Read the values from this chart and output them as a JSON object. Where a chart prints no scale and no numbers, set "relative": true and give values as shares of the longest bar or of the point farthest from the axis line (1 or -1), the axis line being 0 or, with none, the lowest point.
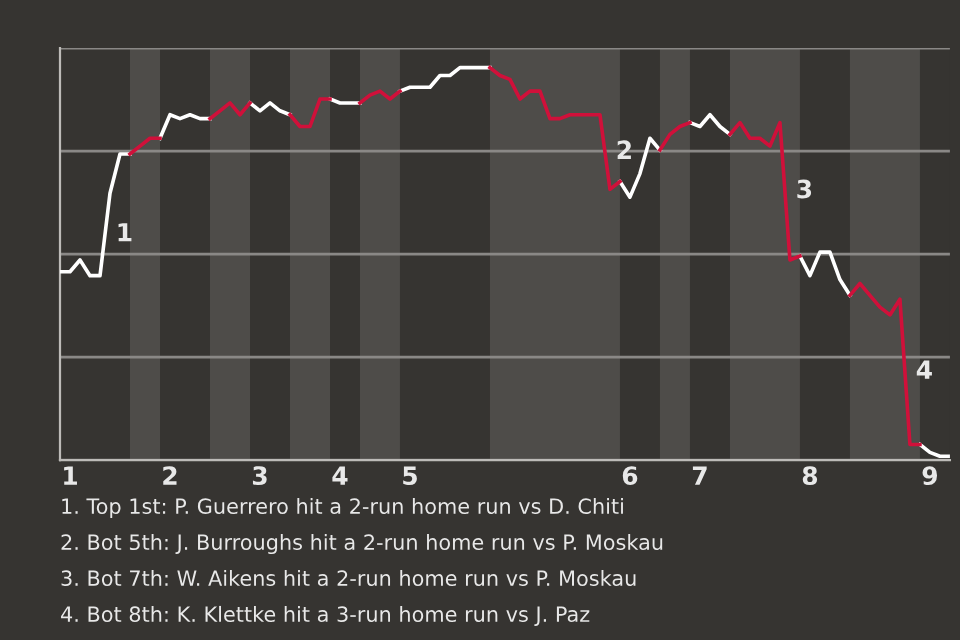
{
  "chart_data": {
    "type": "line",
    "relative": true,
    "tick_labels": "x",
    "grid": "y",
    "legend": false,
    "marker": "none",
    "line_style": "solid",
    "categories": [
      null,
      "1",
      null,
      null,
      null,
      null,
      null,
      null,
      null,
      null,
      null,
      "2",
      null,
      null,
      null,
      null,
      null,
      null,
      null,
      null,
      "3",
      null,
      null,
      null,
      null,
      null,
      null,
      null,
      "4",
      null,
      null,
      null,
      null,
      null,
      null,
      "5",
      null,
      null,
      null,
      null,
      null,
      null,
      null,
      null,
      null,
      null,
      null,
      null,
      null,
      null,
      null,
      null,
      null,
      null,
      null,
      null,
      null,
      "6",
      null,
      null,
      null,
      null,
      null,
      null,
      "7",
      null,
      null,
      null,
      null,
      null,
      null,
      null,
      null,
      null,
      null,
      "8",
      null,
      null,
      null,
      null,
      null,
      null,
      null,
      null,
      null,
      null,
      null,
      "9",
      null,
      null
    ],
    "series": [
      {
        "color": "#ffffff",
        "values": [
          0.48,
          0.48,
          0.51,
          0.47,
          0.47,
          0.68,
          0.78,
          0.78,
          null,
          null,
          0.82,
          0.88,
          0.87,
          0.88,
          0.87,
          0.87,
          null,
          null,
          null,
          0.91,
          0.89,
          0.91,
          0.89,
          0.88,
          null,
          null,
          null,
          0.92,
          0.91,
          0.91,
          0.91,
          null,
          null,
          null,
          0.94,
          0.95,
          0.95,
          0.95,
          0.98,
          0.98,
          1,
          1,
          1,
          1,
          null,
          null,
          null,
          null,
          null,
          null,
          null,
          null,
          null,
          null,
          null,
          null,
          0.71,
          0.67,
          0.73,
          0.82,
          0.79,
          null,
          null,
          0.86,
          0.85,
          0.88,
          0.85,
          0.83,
          null,
          null,
          null,
          null,
          null,
          null,
          0.52,
          0.47,
          0.53,
          0.53,
          0.46,
          0.42,
          null,
          null,
          null,
          null,
          null,
          null,
          0.04,
          0.02,
          0.01,
          0.01
        ]
      },
      {
        "color": "#d0103a",
        "values": [
          null,
          null,
          null,
          null,
          null,
          null,
          null,
          0.78,
          0.8,
          0.82,
          0.82,
          null,
          null,
          null,
          null,
          0.87,
          0.89,
          0.91,
          0.88,
          0.91,
          null,
          null,
          null,
          0.88,
          0.85,
          0.85,
          0.92,
          0.92,
          null,
          null,
          0.91,
          0.93,
          0.94,
          0.92,
          0.94,
          null,
          null,
          null,
          null,
          null,
          null,
          null,
          null,
          1,
          0.98,
          0.97,
          0.92,
          0.94,
          0.94,
          0.87,
          0.87,
          0.88,
          0.88,
          0.88,
          0.88,
          0.69,
          0.71,
          null,
          null,
          null,
          0.79,
          0.83,
          0.85,
          0.86,
          null,
          null,
          null,
          0.83,
          0.86,
          0.82,
          0.82,
          0.8,
          0.86,
          0.51,
          0.52,
          null,
          null,
          null,
          null,
          0.42,
          0.45,
          0.42,
          0.39,
          0.37,
          0.41,
          0.04,
          0.04,
          null,
          null,
          null
        ]
      }
    ],
    "annotations": [
      "1",
      "2",
      "3",
      "4",
      "1. Top 1st: P. Guerrero hit a 2-run home run vs D. Chiti",
      "2. Bot 5th: J. Burroughs hit a 2-run home run vs P. Moskau",
      "3. Bot 7th: W. Aikens hit a 2-run home run vs P. Moskau",
      "4. Bot 8th: K. Klettke hit a 3-run home run vs J. Paz"
    ]
  }
}
